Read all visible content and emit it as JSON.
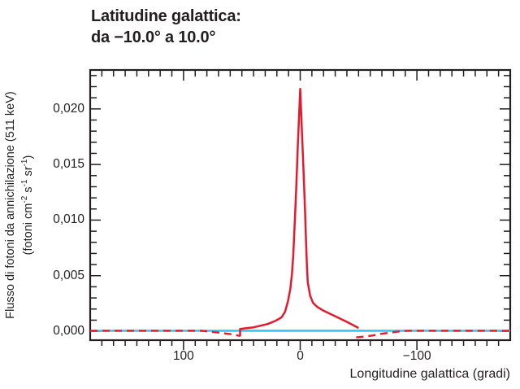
{
  "title": {
    "line1": "Latitudine galattica:",
    "line2": "da −10.0° a 10.0°"
  },
  "colors": {
    "curve_red": "#e8192d",
    "constant_cyan": "#35c5f2",
    "axis_black": "#231f20"
  },
  "chart_data": {
    "type": "line",
    "title": "Latitudine galattica: da −10.0° a 10.0°",
    "xlabel": "Longitudine galattica (gradi)",
    "ylabel_line1": "Flusso di fotoni da annichilazione (511 keV)",
    "ylabel_line2_parts": {
      "prefix": "(fotoni cm",
      "sup1": "-2",
      "mid1": " s",
      "sup2": "-1",
      "mid2": " sr",
      "sup3": "-1",
      "suffix": ")"
    },
    "grid": false,
    "legend": "none",
    "x_axis": {
      "range": [
        180,
        -180
      ],
      "reversed": true,
      "minor_step": 10,
      "major_ticks": [
        {
          "value": 100,
          "label": "100"
        },
        {
          "value": 0,
          "label": "0"
        },
        {
          "value": -100,
          "label": "−100"
        }
      ]
    },
    "y_axis": {
      "range": [
        -0.0008,
        0.0235
      ],
      "minor_step": 0.001,
      "major_step": 0.005,
      "major_ticks": [
        {
          "value": 0.02,
          "label": "0,020"
        },
        {
          "value": 0.015,
          "label": "0,015"
        },
        {
          "value": 0.01,
          "label": "0,010"
        },
        {
          "value": 0.005,
          "label": "0,005"
        },
        {
          "value": 0.0,
          "label": "0,000"
        }
      ]
    },
    "series": [
      {
        "name": "linea-azzurra-costante",
        "style": "solid",
        "color": "#35c5f2",
        "width": 2.6,
        "points": [
          [
            180,
            5e-05
          ],
          [
            -180,
            5e-05
          ]
        ]
      },
      {
        "name": "curva-rossa-tratteggiata-sx",
        "style": "dashed",
        "color": "#e8192d",
        "width": 2.4,
        "points": [
          [
            180,
            5e-05
          ],
          [
            100,
            5e-05
          ],
          [
            85,
            5e-05
          ],
          [
            70,
            -0.00012
          ],
          [
            58,
            -0.00028
          ],
          [
            51.5,
            -0.00042
          ]
        ]
      },
      {
        "name": "curva-rossa-tratteggiata-dx",
        "style": "dashed",
        "color": "#e8192d",
        "width": 2.4,
        "points": [
          [
            -48,
            -0.00055
          ],
          [
            -58,
            -0.00045
          ],
          [
            -70,
            -0.00022
          ],
          [
            -82,
            -5e-05
          ],
          [
            -92,
            5e-05
          ],
          [
            -180,
            5e-05
          ]
        ]
      },
      {
        "name": "curva-rossa-continua-511keV",
        "style": "solid",
        "color": "#e8192d",
        "width": 2.5,
        "points": [
          [
            51.5,
            -0.00045
          ],
          [
            51.5,
            0.0002
          ],
          [
            46,
            0.00028
          ],
          [
            40,
            0.00036
          ],
          [
            34,
            0.0005
          ],
          [
            28,
            0.00065
          ],
          [
            21,
            0.00095
          ],
          [
            16,
            0.00125
          ],
          [
            13,
            0.00175
          ],
          [
            10.5,
            0.0027
          ],
          [
            8.5,
            0.0038
          ],
          [
            7,
            0.0052
          ],
          [
            6,
            0.0068
          ],
          [
            4.8,
            0.0095
          ],
          [
            3.5,
            0.0127
          ],
          [
            2,
            0.0168
          ],
          [
            0,
            0.0218
          ],
          [
            -1.5,
            0.0178
          ],
          [
            -2.9,
            0.0142
          ],
          [
            -4.2,
            0.0107
          ],
          [
            -5,
            0.008
          ],
          [
            -5.8,
            0.0058
          ],
          [
            -6.5,
            0.0044
          ],
          [
            -8.5,
            0.0032
          ],
          [
            -11,
            0.00255
          ],
          [
            -14.5,
            0.0022
          ],
          [
            -20,
            0.00185
          ],
          [
            -29,
            0.0014
          ],
          [
            -40,
            0.00085
          ],
          [
            -50,
            0.0003
          ]
        ]
      }
    ]
  }
}
